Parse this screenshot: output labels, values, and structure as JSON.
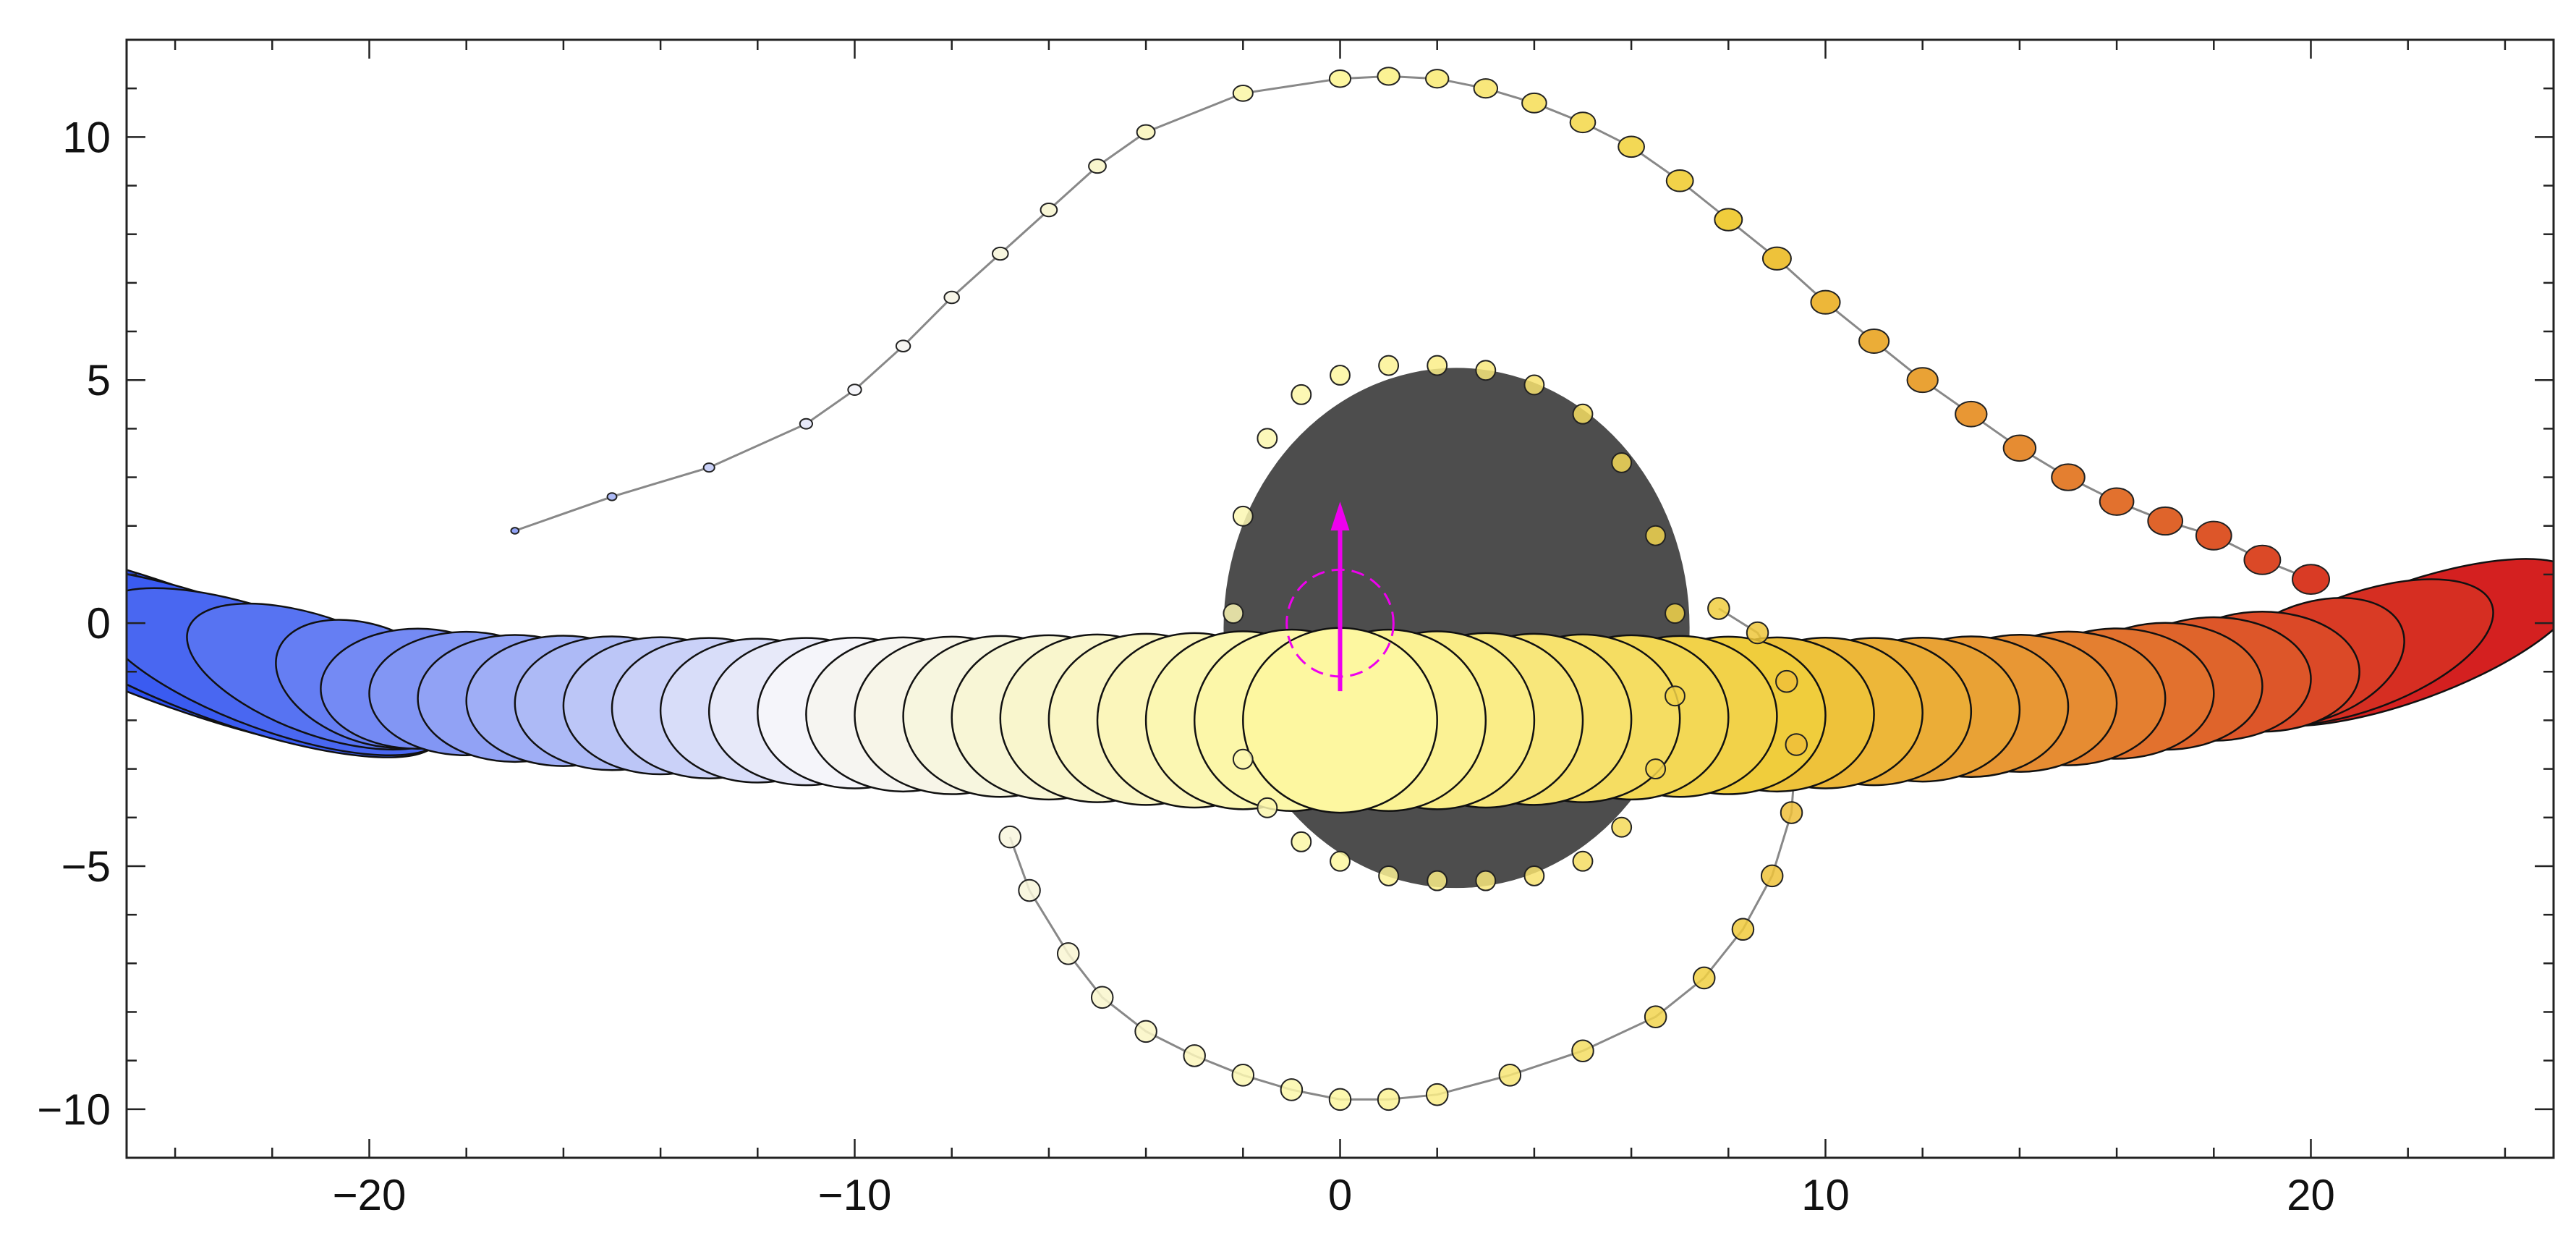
{
  "chart_data": {
    "type": "scatter",
    "title": "",
    "xlabel": "",
    "ylabel": "",
    "xlim": [
      -25,
      25
    ],
    "ylim": [
      -11,
      12
    ],
    "x_ticks": [
      -20,
      -10,
      0,
      10,
      20
    ],
    "x_tick_labels": [
      "−20",
      "−10",
      "0",
      "10",
      "20"
    ],
    "y_ticks": [
      -10,
      -5,
      0,
      5,
      10
    ],
    "y_tick_labels": [
      "−10",
      "−5",
      "0",
      "5",
      "10"
    ],
    "grid": false,
    "legend": "none",
    "colors": {
      "shadow": "#4d4d4d",
      "arrow": "#ee00ee",
      "cold": "#2c4ff0",
      "hot": "#d42020",
      "core": "#fdf7a0",
      "track": "#888888"
    },
    "shadow": {
      "x_center": 2.4,
      "y_center": -0.1,
      "x_radius": 4.8,
      "y_radius": 5.35
    },
    "arrow": {
      "x": 0,
      "y_start": -1.4,
      "y_end": 2.5
    },
    "circle_marker": {
      "x": 0,
      "y": 0,
      "radius": 1.1
    },
    "primary_image": {
      "x": [
        -24,
        -23,
        -22,
        -21,
        -20,
        -19,
        -18,
        -17,
        -16,
        -15,
        -14,
        -13,
        -12,
        -11,
        -10,
        -9,
        -8,
        -7,
        -6,
        -5,
        -4,
        -3,
        -2,
        -1,
        0,
        1,
        2,
        3,
        4,
        5,
        6,
        7,
        8,
        9,
        10,
        11,
        12,
        13,
        14,
        15,
        16,
        17,
        18,
        19,
        20,
        21,
        22
      ],
      "y": [
        -0.5,
        -0.8,
        -1.0,
        -1.1,
        -1.25,
        -1.35,
        -1.45,
        -1.55,
        -1.6,
        -1.65,
        -1.7,
        -1.75,
        -1.8,
        -1.82,
        -1.85,
        -1.88,
        -1.9,
        -1.92,
        -1.94,
        -1.96,
        -1.98,
        -2.0,
        -2.0,
        -2.0,
        -2.0,
        -2.0,
        -2.0,
        -2.0,
        -1.98,
        -1.96,
        -1.94,
        -1.92,
        -1.9,
        -1.88,
        -1.85,
        -1.82,
        -1.78,
        -1.72,
        -1.65,
        -1.55,
        -1.45,
        -1.3,
        -1.15,
        -1.0,
        -0.8,
        -0.6,
        -0.4
      ]
    },
    "upper_track": {
      "x": [
        -17,
        -15,
        -13,
        -11,
        -10,
        -9,
        -8,
        -7,
        -6,
        -5,
        -4,
        -2,
        0,
        1,
        2,
        3,
        4,
        5,
        6,
        7,
        8,
        9,
        10,
        11,
        12,
        13,
        14,
        15,
        16,
        17,
        18,
        19,
        20
      ],
      "y": [
        1.9,
        2.6,
        3.2,
        4.1,
        4.8,
        5.7,
        6.7,
        7.6,
        8.5,
        9.4,
        10.1,
        10.9,
        11.2,
        11.25,
        11.2,
        11.0,
        10.7,
        10.3,
        9.8,
        9.1,
        8.3,
        7.5,
        6.6,
        5.8,
        5.0,
        4.3,
        3.6,
        3.0,
        2.5,
        2.1,
        1.8,
        1.3,
        0.9
      ]
    },
    "lower_loop": {
      "x": [
        -6.8,
        -6.4,
        -5.6,
        -4.9,
        -4.0,
        -3.0,
        -2.0,
        -1.0,
        0.0,
        1.0,
        2.0,
        3.5,
        5.0,
        6.5,
        7.5,
        8.3,
        8.9,
        9.3,
        9.4,
        9.2,
        8.6,
        7.8
      ],
      "y": [
        -4.4,
        -5.5,
        -6.8,
        -7.7,
        -8.4,
        -8.9,
        -9.3,
        -9.6,
        -9.8,
        -9.8,
        -9.7,
        -9.3,
        -8.8,
        -8.1,
        -7.3,
        -6.3,
        -5.2,
        -3.9,
        -2.5,
        -1.2,
        -0.2,
        0.3
      ]
    },
    "shadow_ring": {
      "x": [
        -2.2,
        -2.0,
        -1.5,
        -0.8,
        0.0,
        1.0,
        2.0,
        3.0,
        4.0,
        5.0,
        5.8,
        6.5,
        6.9,
        6.9,
        6.5,
        5.8,
        5.0,
        4.0,
        3.0,
        2.0,
        1.0,
        0.0,
        -0.8,
        -1.5,
        -2.0
      ],
      "y": [
        0.2,
        2.2,
        3.8,
        4.7,
        5.1,
        5.3,
        5.3,
        5.2,
        4.9,
        4.3,
        3.3,
        1.8,
        0.2,
        -1.5,
        -3.0,
        -4.2,
        -4.9,
        -5.2,
        -5.3,
        -5.3,
        -5.2,
        -4.9,
        -4.5,
        -3.8,
        -2.8
      ]
    }
  }
}
